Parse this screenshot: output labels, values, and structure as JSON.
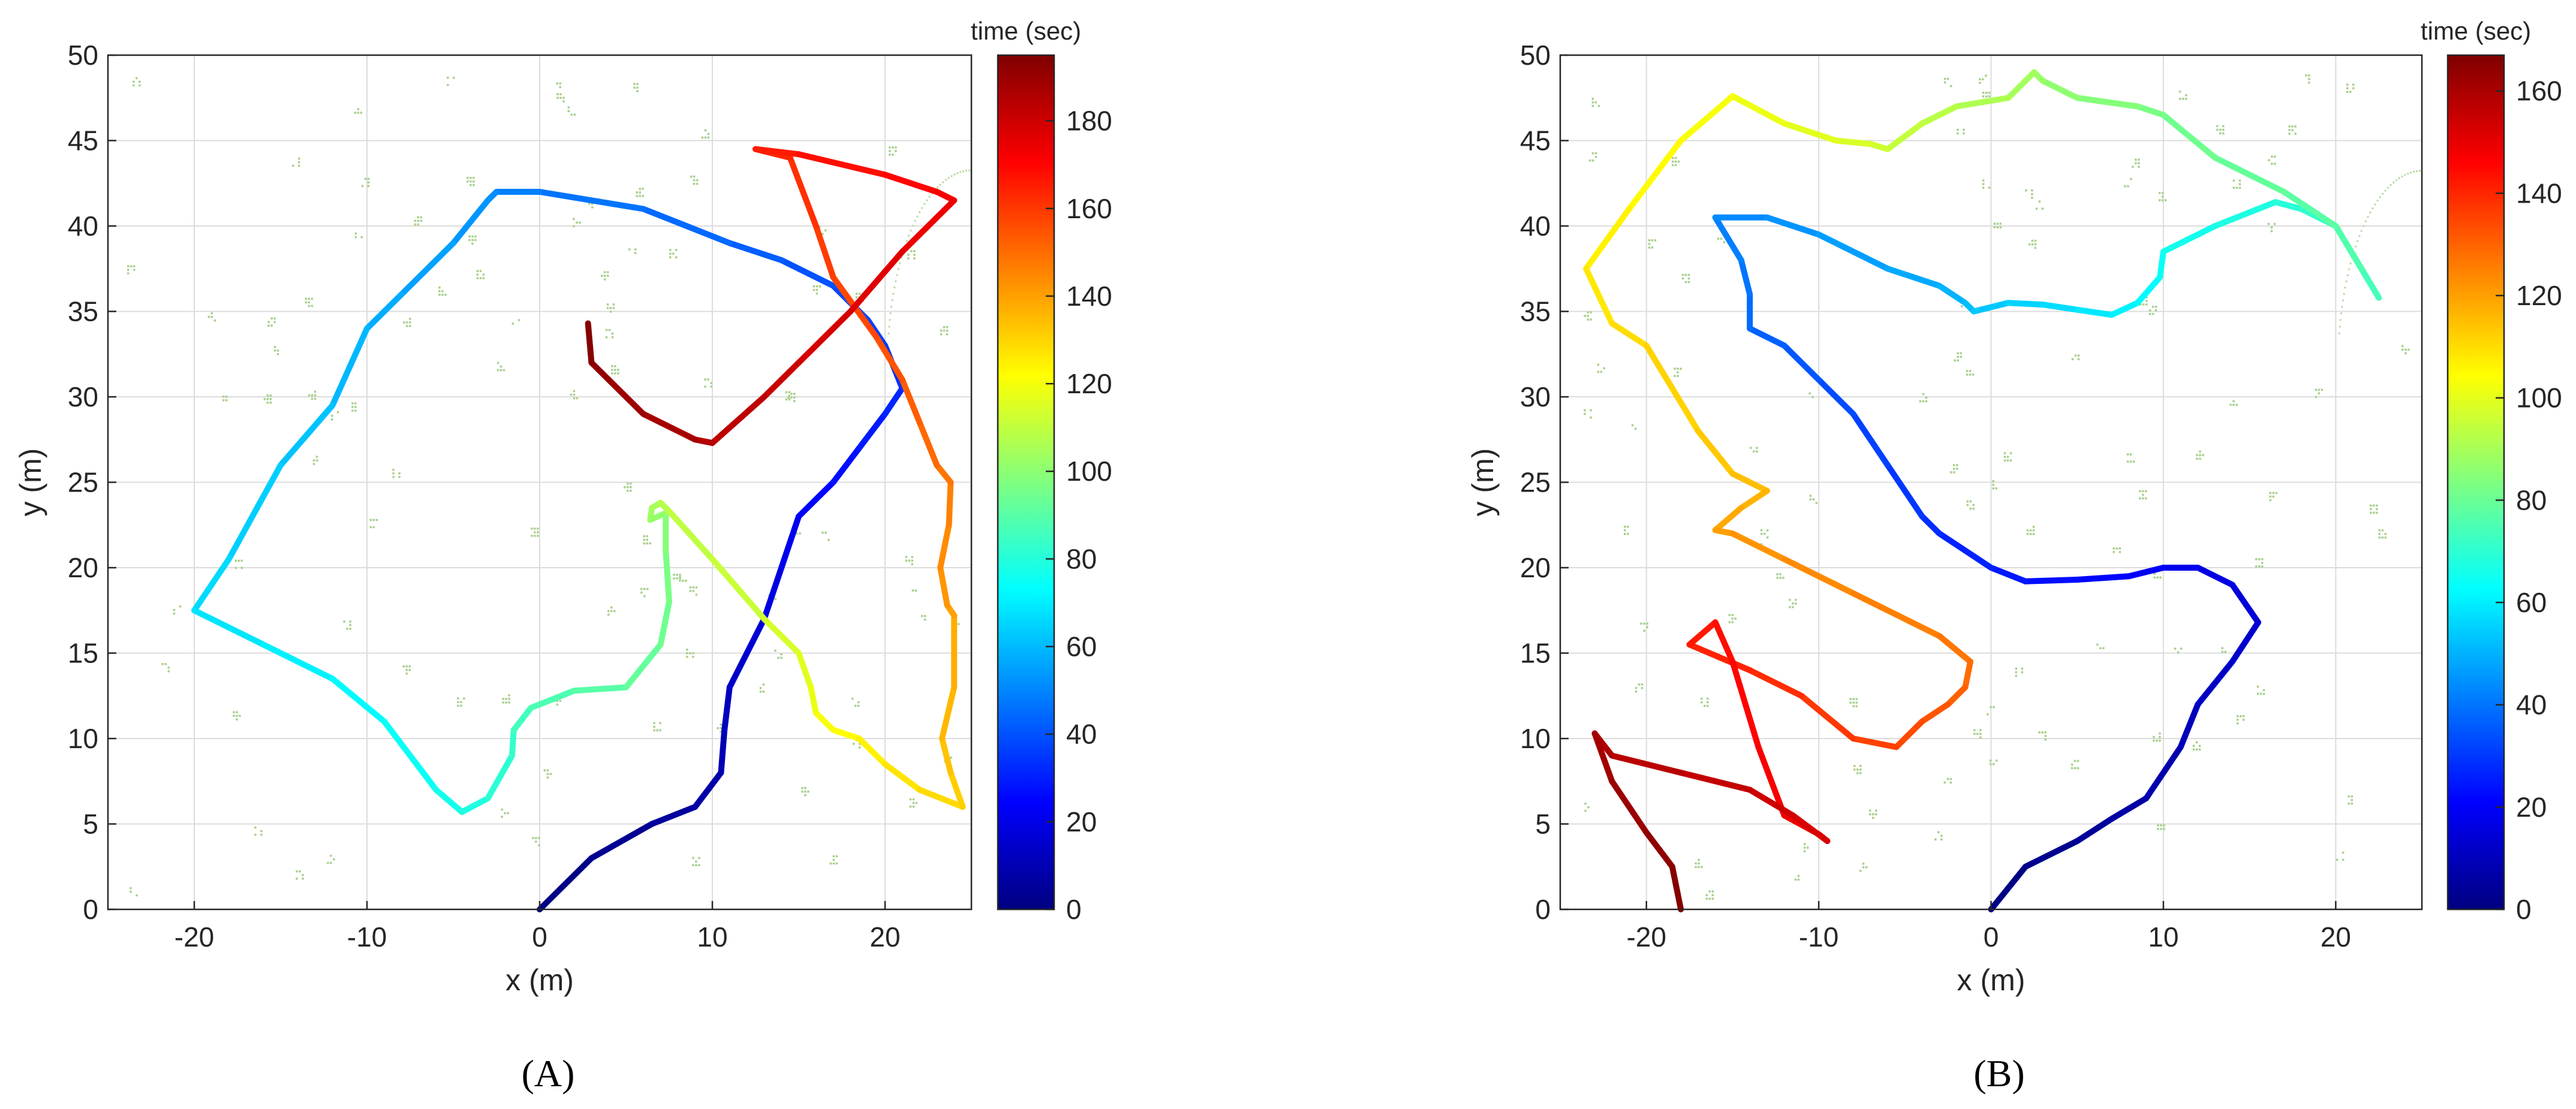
{
  "chart_data": [
    {
      "type": "line",
      "panel_label": "(A)",
      "xlabel": "x (m)",
      "ylabel": "y (m)",
      "xlim": [
        -25,
        25
      ],
      "ylim": [
        0,
        50
      ],
      "xticks": [
        -20,
        -10,
        0,
        10,
        20
      ],
      "yticks": [
        0,
        5,
        10,
        15,
        20,
        25,
        30,
        35,
        40,
        45,
        50
      ],
      "grid": true,
      "colorbar": {
        "title": "time (sec)",
        "colormap": "jet",
        "range": [
          0,
          195
        ],
        "ticks": [
          0,
          20,
          40,
          60,
          80,
          100,
          120,
          140,
          160,
          180
        ]
      },
      "trajectory": {
        "x": [
          0,
          3,
          6.5,
          9,
          10.5,
          10.7,
          11,
          12,
          13,
          14,
          15,
          16,
          17,
          18.5,
          20,
          21,
          20,
          19,
          17,
          14,
          11,
          6,
          0,
          -2.5,
          -3,
          -5,
          -8,
          -10,
          -12,
          -15,
          -18,
          -20,
          -16,
          -12,
          -9,
          -6,
          -4.5,
          -3,
          -1.6,
          -1.5,
          -0.5,
          2,
          5,
          7,
          7.5,
          7.3,
          7.3,
          6.4,
          6.5,
          7,
          7.5,
          10,
          13,
          15,
          15.7,
          16,
          17,
          18.5,
          20,
          22,
          24.5,
          23.8,
          23.3,
          24,
          24,
          23.6,
          23.2,
          23.7,
          23.8,
          23,
          22,
          21,
          19.5,
          17,
          16,
          14.5,
          12.5,
          15,
          20,
          23,
          24,
          21,
          18,
          15,
          13,
          10,
          9,
          6,
          4,
          3,
          2.8
        ],
        "y": [
          0,
          3,
          5,
          6,
          8,
          10.5,
          13,
          15,
          17,
          20,
          23,
          24,
          25,
          27,
          29,
          30.5,
          33,
          34.5,
          36.5,
          38,
          39,
          41,
          42,
          42,
          41.5,
          39,
          36,
          34,
          29.5,
          26,
          20.5,
          17.5,
          15.5,
          13.5,
          11,
          7,
          5.7,
          6.5,
          9,
          10.5,
          11.8,
          12.8,
          13,
          15.5,
          18,
          21,
          23.2,
          22.8,
          23.5,
          23.8,
          23.3,
          20.5,
          17,
          15,
          13,
          11.5,
          10.5,
          10,
          8.5,
          7,
          6,
          8,
          10,
          13,
          17.2,
          17.8,
          20,
          22.5,
          25,
          26,
          28.5,
          31,
          33.5,
          37,
          40,
          44,
          44.5,
          44.2,
          43,
          42,
          41.5,
          38.5,
          35,
          32,
          30,
          27.3,
          27.5,
          29,
          31,
          32,
          34.3
        ]
      }
    },
    {
      "type": "line",
      "panel_label": "(B)",
      "xlabel": "x (m)",
      "ylabel": "y (m)",
      "xlim": [
        -25,
        25
      ],
      "ylim": [
        0,
        50
      ],
      "xticks": [
        -20,
        -10,
        0,
        10,
        20
      ],
      "yticks": [
        0,
        5,
        10,
        15,
        20,
        25,
        30,
        35,
        40,
        45,
        50
      ],
      "grid": true,
      "colorbar": {
        "title": "time (sec)",
        "colormap": "jet",
        "range": [
          0,
          167
        ],
        "ticks": [
          0,
          20,
          40,
          60,
          80,
          100,
          120,
          140,
          160
        ]
      },
      "trajectory": {
        "x": [
          0,
          2,
          5,
          7,
          9,
          11,
          12,
          14,
          15.5,
          14,
          12,
          10,
          8,
          5,
          2,
          0,
          -3,
          -4,
          -6,
          -8,
          -10,
          -12,
          -14,
          -14,
          -14.5,
          -16,
          -13,
          -10,
          -6,
          -3,
          -1.5,
          -1,
          1,
          3,
          5,
          7,
          8.5,
          9.8,
          10,
          13,
          16.5,
          18,
          20,
          22.5,
          21.5,
          20,
          17,
          13,
          10,
          8.5,
          5,
          3,
          2.5,
          1,
          -2,
          -4,
          -6,
          -7,
          -9,
          -12,
          -15,
          -18,
          -21,
          -23.5,
          -22,
          -20,
          -17,
          -15,
          -13,
          -14.5,
          -16,
          -15,
          -12,
          -8,
          -3,
          -1.2,
          -1.5,
          -2.5,
          -4,
          -5.5,
          -8,
          -11,
          -14,
          -17.5,
          -16,
          -15,
          -13.5,
          -12,
          -10,
          -9.5,
          -11.5,
          -14,
          -18,
          -22,
          -23,
          -22,
          -20,
          -18.5,
          -18
        ],
        "y": [
          0,
          2.5,
          4,
          5.3,
          6.5,
          9.5,
          12,
          14.5,
          16.8,
          19,
          20,
          20,
          19.5,
          19.3,
          19.2,
          20,
          22,
          23,
          26,
          29,
          31,
          33,
          34,
          36,
          38,
          40.5,
          40.5,
          39.5,
          37.5,
          36.5,
          35.5,
          35,
          35.5,
          35.4,
          35.1,
          34.8,
          35.5,
          37,
          38.5,
          40,
          41.4,
          41,
          40,
          35.8,
          37.5,
          40,
          42,
          44,
          46.5,
          47,
          47.5,
          48.5,
          49,
          47.5,
          47,
          46,
          44.5,
          44.8,
          45,
          46,
          47.6,
          45,
          41,
          37.5,
          34.3,
          33,
          28,
          25.5,
          24.5,
          23.5,
          22.2,
          22,
          20.5,
          18.5,
          16,
          14.5,
          13,
          12,
          11,
          9.5,
          10,
          12.5,
          14,
          15.5,
          16.8,
          14.5,
          9.5,
          5.5,
          4.4,
          4,
          5.5,
          7,
          8,
          9,
          10.3,
          7.5,
          4.5,
          2.5,
          0
        ]
      }
    }
  ]
}
